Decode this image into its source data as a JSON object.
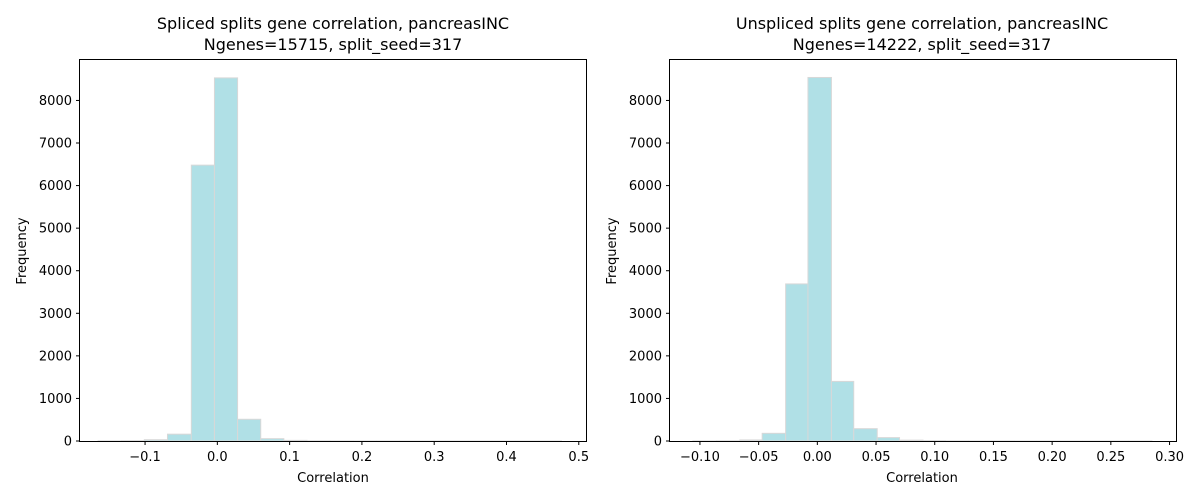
{
  "chart_data": [
    {
      "type": "bar",
      "title": "Spliced splits gene correlation, pancreasINC",
      "subtitle": "Ngenes=15715, split_seed=317",
      "xlabel": "Correlation",
      "ylabel": "Frequency",
      "xlim": [
        -0.19,
        0.51
      ],
      "ylim": [
        0,
        8950
      ],
      "xticks": [
        -0.1,
        0.0,
        0.1,
        0.2,
        0.3,
        0.4,
        0.5
      ],
      "xtick_labels": [
        "−0.1",
        "0.0",
        "0.1",
        "0.2",
        "0.3",
        "0.4",
        "0.5"
      ],
      "yticks": [
        0,
        1000,
        2000,
        3000,
        4000,
        5000,
        6000,
        7000,
        8000
      ],
      "ytick_labels": [
        "0",
        "1000",
        "2000",
        "3000",
        "4000",
        "5000",
        "6000",
        "7000",
        "8000"
      ],
      "bins": [
        {
          "x0": -0.165,
          "x1": -0.133,
          "value": 3
        },
        {
          "x0": -0.133,
          "x1": -0.101,
          "value": 8
        },
        {
          "x0": -0.101,
          "x1": -0.069,
          "value": 30
        },
        {
          "x0": -0.069,
          "x1": -0.036,
          "value": 160
        },
        {
          "x0": -0.036,
          "x1": -0.004,
          "value": 6480
        },
        {
          "x0": -0.004,
          "x1": 0.028,
          "value": 8530
        },
        {
          "x0": 0.028,
          "x1": 0.06,
          "value": 510
        },
        {
          "x0": 0.06,
          "x1": 0.092,
          "value": 55
        },
        {
          "x0": 0.092,
          "x1": 0.124,
          "value": 15
        },
        {
          "x0": 0.124,
          "x1": 0.156,
          "value": 5
        },
        {
          "x0": 0.156,
          "x1": 0.188,
          "value": 3
        },
        {
          "x0": 0.188,
          "x1": 0.22,
          "value": 2
        },
        {
          "x0": 0.22,
          "x1": 0.252,
          "value": 2
        },
        {
          "x0": 0.252,
          "x1": 0.284,
          "value": 1
        },
        {
          "x0": 0.284,
          "x1": 0.316,
          "value": 1
        },
        {
          "x0": 0.316,
          "x1": 0.348,
          "value": 1
        },
        {
          "x0": 0.348,
          "x1": 0.38,
          "value": 1
        },
        {
          "x0": 0.38,
          "x1": 0.412,
          "value": 1
        },
        {
          "x0": 0.412,
          "x1": 0.444,
          "value": 1
        },
        {
          "x0": 0.444,
          "x1": 0.476,
          "value": 1
        }
      ],
      "bar_color": "#b0e0e6",
      "edge_color": "#d8d8d8"
    },
    {
      "type": "bar",
      "title": "Unspliced splits gene correlation, pancreasINC",
      "subtitle": "Ngenes=14222, split_seed=317",
      "xlabel": "Correlation",
      "ylabel": "Frequency",
      "xlim": [
        -0.1255,
        0.3055
      ],
      "ylim": [
        0,
        8950
      ],
      "xticks": [
        -0.1,
        -0.05,
        0.0,
        0.05,
        0.1,
        0.15,
        0.2,
        0.25,
        0.3
      ],
      "xtick_labels": [
        "−0.10",
        "−0.05",
        "0.00",
        "0.05",
        "0.10",
        "0.15",
        "0.20",
        "0.25",
        "0.30"
      ],
      "yticks": [
        0,
        1000,
        2000,
        3000,
        4000,
        5000,
        6000,
        7000,
        8000
      ],
      "ytick_labels": [
        "0",
        "1000",
        "2000",
        "3000",
        "4000",
        "5000",
        "6000",
        "7000",
        "8000"
      ],
      "bins": [
        {
          "x0": -0.106,
          "x1": -0.086,
          "value": 2
        },
        {
          "x0": -0.086,
          "x1": -0.066,
          "value": 5
        },
        {
          "x0": -0.066,
          "x1": -0.047,
          "value": 25
        },
        {
          "x0": -0.047,
          "x1": -0.027,
          "value": 180
        },
        {
          "x0": -0.027,
          "x1": -0.008,
          "value": 3690
        },
        {
          "x0": -0.008,
          "x1": 0.012,
          "value": 8540
        },
        {
          "x0": 0.012,
          "x1": 0.031,
          "value": 1400
        },
        {
          "x0": 0.031,
          "x1": 0.051,
          "value": 290
        },
        {
          "x0": 0.051,
          "x1": 0.07,
          "value": 80
        },
        {
          "x0": 0.07,
          "x1": 0.09,
          "value": 20
        },
        {
          "x0": 0.09,
          "x1": 0.109,
          "value": 8
        },
        {
          "x0": 0.109,
          "x1": 0.129,
          "value": 4
        },
        {
          "x0": 0.129,
          "x1": 0.148,
          "value": 2
        },
        {
          "x0": 0.148,
          "x1": 0.168,
          "value": 2
        },
        {
          "x0": 0.168,
          "x1": 0.187,
          "value": 1
        },
        {
          "x0": 0.187,
          "x1": 0.207,
          "value": 1
        },
        {
          "x0": 0.207,
          "x1": 0.226,
          "value": 1
        },
        {
          "x0": 0.226,
          "x1": 0.246,
          "value": 1
        },
        {
          "x0": 0.246,
          "x1": 0.265,
          "value": 1
        },
        {
          "x0": 0.265,
          "x1": 0.285,
          "value": 1
        }
      ],
      "bar_color": "#b0e0e6",
      "edge_color": "#d8d8d8"
    }
  ]
}
